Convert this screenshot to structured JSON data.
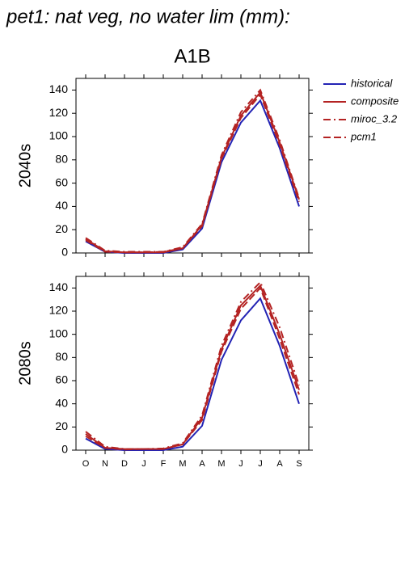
{
  "title": "pet1: nat veg, no water lim (mm):",
  "chart_data": [
    {
      "type": "line",
      "title": "A1B",
      "y_label": "2040s",
      "legend": "right",
      "categories": [
        null,
        null,
        null,
        null,
        null,
        null,
        null,
        null,
        null,
        null,
        null,
        null
      ],
      "ylim": [
        0,
        150
      ],
      "yticks": [
        0,
        20,
        40,
        60,
        80,
        100,
        120,
        140
      ],
      "series": [
        {
          "name": "historical",
          "color": "#2323b4",
          "dash": "solid",
          "values": [
            10,
            1,
            0,
            0,
            0,
            3,
            21,
            78,
            112,
            131,
            90,
            40
          ]
        },
        {
          "name": "composite",
          "color": "#b42323",
          "dash": "solid",
          "values": [
            12,
            1.5,
            0.5,
            0.5,
            0.5,
            4,
            24,
            82,
            118,
            138,
            95,
            46
          ]
        },
        {
          "name": "miroc_3.2",
          "color": "#b42323",
          "dash": "dashdot",
          "values": [
            13,
            2,
            1,
            1,
            1,
            5,
            25,
            84,
            121,
            140,
            97,
            47
          ]
        },
        {
          "name": "pcm1",
          "color": "#b42323",
          "dash": "dashed",
          "values": [
            11,
            1,
            0.5,
            0.5,
            1,
            4,
            23,
            81,
            116,
            136,
            93,
            44
          ]
        }
      ]
    },
    {
      "type": "line",
      "y_label": "2080s",
      "categories": [
        "O",
        "N",
        "D",
        "J",
        "F",
        "M",
        "A",
        "M",
        "J",
        "J",
        "A",
        "S"
      ],
      "ylim": [
        0,
        150
      ],
      "yticks": [
        0,
        20,
        40,
        60,
        80,
        100,
        120,
        140
      ],
      "series": [
        {
          "name": "historical",
          "color": "#2323b4",
          "dash": "solid",
          "values": [
            10,
            1,
            0,
            0,
            0,
            3,
            21,
            78,
            112,
            131,
            90,
            40
          ]
        },
        {
          "name": "composite",
          "color": "#b42323",
          "dash": "solid",
          "values": [
            14,
            2,
            1,
            1,
            1,
            5,
            28,
            87,
            125,
            142,
            100,
            52
          ]
        },
        {
          "name": "miroc_3.2",
          "color": "#b42323",
          "dash": "dashdot",
          "values": [
            16,
            3,
            1,
            1,
            1.5,
            6,
            30,
            90,
            128,
            145,
            106,
            56
          ]
        },
        {
          "name": "pcm1",
          "color": "#b42323",
          "dash": "dashed",
          "values": [
            12,
            2,
            0.5,
            1,
            1,
            5,
            26,
            85,
            122,
            140,
            96,
            48
          ]
        }
      ]
    }
  ]
}
